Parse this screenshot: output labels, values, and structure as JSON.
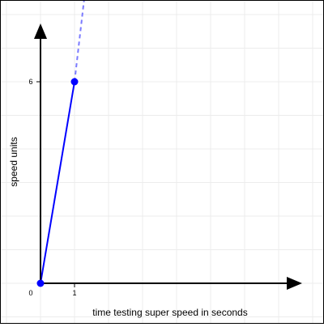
{
  "chart_data": {
    "type": "line",
    "title": "",
    "xlabel": "time testing super speed in seconds",
    "ylabel": "speed units",
    "xlim": [
      0,
      7
    ],
    "ylim": [
      0,
      7.6
    ],
    "grid": true,
    "x_ticks": [
      {
        "value": 0,
        "label": "0"
      },
      {
        "value": 1,
        "label": "1"
      }
    ],
    "y_ticks": [
      {
        "value": 6,
        "label": "6"
      }
    ],
    "series": [
      {
        "points": [
          {
            "x": 0,
            "y": 0
          },
          {
            "x": 1,
            "y": 6
          }
        ],
        "color": "#0000ff",
        "style": "solid",
        "markers": true
      },
      {
        "points": [
          {
            "x": 1,
            "y": 6
          },
          {
            "x": 1.3,
            "y": 8.6
          }
        ],
        "color": "#7a7aff",
        "style": "dashed",
        "markers": false
      }
    ],
    "axis_color": "#000000",
    "grid_color": "#ececec"
  }
}
